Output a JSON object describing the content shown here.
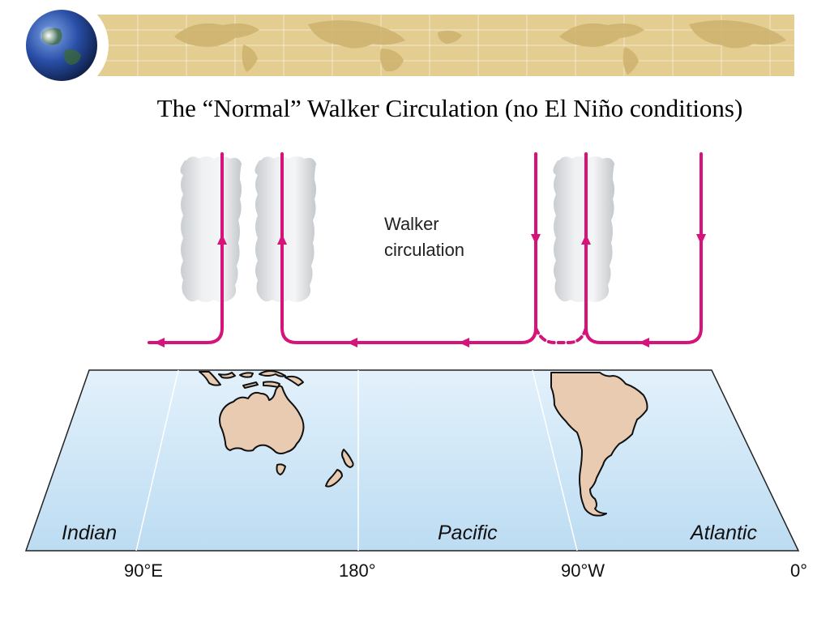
{
  "slide": {
    "title": "The “Normal” Walker Circulation (no El Niño conditions)"
  },
  "header": {
    "logo_icon": "globe-icon",
    "banner": "world-map-banner"
  },
  "diagram": {
    "annotation_line1": "Walker",
    "annotation_line2": "circulation",
    "oceans": [
      "Indian",
      "Pacific",
      "Atlantic"
    ],
    "longitudes": [
      "90°E",
      "180°",
      "90°W",
      "0°"
    ],
    "colors": {
      "circulation": "#d6137a",
      "ocean": "#c9e4f5",
      "land": "#e8cbb0",
      "cloud": "#d9dcdf",
      "banner": "#e3cd90"
    }
  }
}
